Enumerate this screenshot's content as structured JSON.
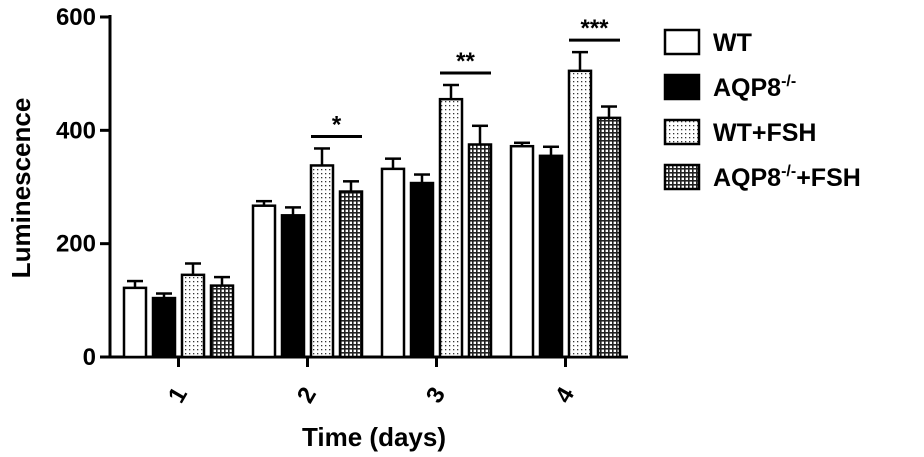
{
  "chart_data": {
    "type": "bar",
    "xlabel": "Time (days)",
    "ylabel": "Luminescence",
    "ylim": [
      0,
      600
    ],
    "yticks": [
      0,
      200,
      400,
      600
    ],
    "categories": [
      "1",
      "2",
      "3",
      "4"
    ],
    "series": [
      {
        "name": "WT",
        "sup": "",
        "suffix": "",
        "pattern": "open",
        "values": [
          122,
          267,
          332,
          372
        ],
        "errors": [
          12,
          8,
          18,
          6
        ]
      },
      {
        "name": "AQP8",
        "sup": "-/-",
        "suffix": "",
        "pattern": "solid",
        "values": [
          104,
          250,
          307,
          355
        ],
        "errors": [
          8,
          14,
          15,
          16
        ]
      },
      {
        "name": "WT",
        "sup": "",
        "suffix": "+FSH",
        "pattern": "dots",
        "values": [
          145,
          338,
          455,
          505
        ],
        "errors": [
          20,
          30,
          25,
          33
        ]
      },
      {
        "name": "AQP8",
        "sup": "-/-",
        "suffix": "+FSH",
        "pattern": "grid",
        "values": [
          126,
          292,
          375,
          422
        ],
        "errors": [
          15,
          18,
          33,
          20
        ]
      }
    ],
    "significance": [
      {
        "category": "2",
        "label": "*"
      },
      {
        "category": "3",
        "label": "**"
      },
      {
        "category": "4",
        "label": "***"
      }
    ],
    "grid": false,
    "legend_position": "right"
  }
}
